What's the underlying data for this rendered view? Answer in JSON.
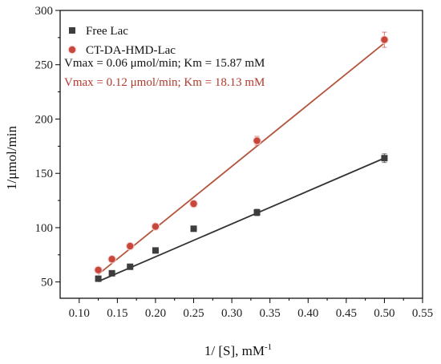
{
  "chart_data": {
    "type": "scatter",
    "title": "",
    "xlabel": "1/ [S], mM",
    "xlabel_sup": "-1",
    "ylabel": "1/μmol/min",
    "xlim": [
      0.075,
      0.55
    ],
    "ylim": [
      35,
      300
    ],
    "x_ticks": [
      "0.10",
      "0.15",
      "0.20",
      "0.25",
      "0.30",
      "0.35",
      "0.40",
      "0.45",
      "0.50",
      "0.55"
    ],
    "y_ticks": [
      "50",
      "100",
      "150",
      "200",
      "250",
      "300"
    ],
    "grid": false,
    "legend_position": "top-left",
    "series": [
      {
        "name": "Free Lac",
        "marker": "square",
        "color": "#3d3d3d",
        "line_color": "#333333",
        "x": [
          0.125,
          0.1429,
          0.1667,
          0.2,
          0.25,
          0.333,
          0.5
        ],
        "y": [
          53,
          58,
          64,
          79,
          99,
          114,
          164
        ],
        "err": [
          2,
          1.5,
          1.5,
          2,
          2,
          3,
          4
        ],
        "fit": [
          [
            0.125,
            50.5
          ],
          [
            0.5,
            164
          ]
        ]
      },
      {
        "name": "CT-DA-HMD-Lac",
        "marker": "circle",
        "color": "#c8473a",
        "line_color": "#b5543d",
        "x": [
          0.125,
          0.1429,
          0.1667,
          0.2,
          0.25,
          0.333,
          0.5
        ],
        "y": [
          61,
          71,
          83,
          101,
          122,
          180,
          273
        ],
        "err": [
          2,
          2,
          2,
          2.5,
          3,
          4,
          7
        ],
        "fit": [
          [
            0.125,
            57
          ],
          [
            0.5,
            270
          ]
        ]
      }
    ],
    "annotations": [
      {
        "text": "Vmax = 0.06 μmol/min; Km = 15.87 mM",
        "color": "#111111"
      },
      {
        "text": "Vmax = 0.12 μmol/min; Km = 18.13 mM",
        "color": "#b03a2e"
      }
    ]
  }
}
